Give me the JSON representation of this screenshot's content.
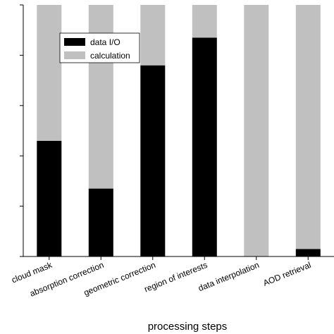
{
  "chart_data": {
    "type": "bar",
    "stacked": true,
    "orientation": "vertical",
    "xlabel": "processing steps",
    "ylabel": "",
    "ylim": [
      0,
      100
    ],
    "categories": [
      "cloud mask",
      "absorption correction",
      "geometric correction",
      "region of interests",
      "data interpolation",
      "AOD retrieval"
    ],
    "series": [
      {
        "name": "data I/O",
        "color": "#000000",
        "values": [
          46,
          27,
          76,
          87,
          0,
          3
        ]
      },
      {
        "name": "calculation",
        "color": "#c0c0c0",
        "values": [
          54,
          73,
          24,
          13,
          100,
          97
        ]
      }
    ],
    "legend_position": "top-left",
    "grid": false
  }
}
